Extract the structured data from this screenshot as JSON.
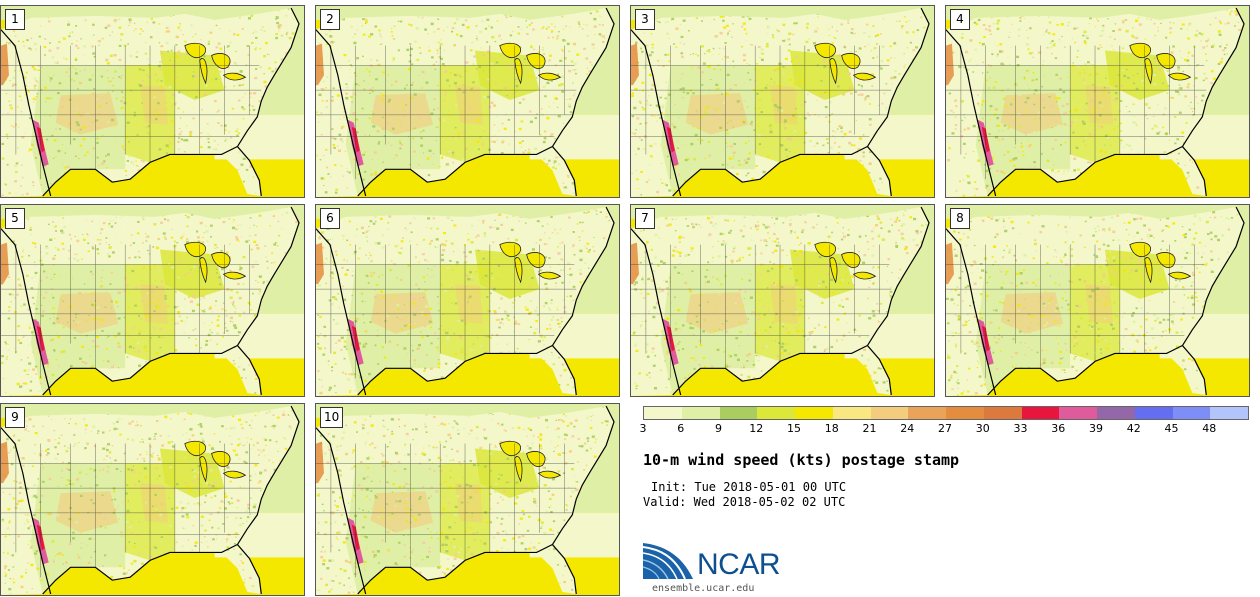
{
  "product": {
    "title": "10-m wind speed (kts) postage stamp",
    "init_label": "Init:",
    "init_value": "Tue 2018-05-01 00 UTC",
    "valid_label": "Valid:",
    "valid_value": "Wed 2018-05-02 02 UTC"
  },
  "logo": {
    "name": "NCAR",
    "website": "ensemble.ucar.edu"
  },
  "members": [
    {
      "label": "1"
    },
    {
      "label": "2"
    },
    {
      "label": "3"
    },
    {
      "label": "4"
    },
    {
      "label": "5"
    },
    {
      "label": "6"
    },
    {
      "label": "7"
    },
    {
      "label": "8"
    },
    {
      "label": "9"
    },
    {
      "label": "10"
    }
  ],
  "colorbar": {
    "unit": "kts",
    "ticks": [
      "3",
      "6",
      "9",
      "12",
      "15",
      "18",
      "21",
      "24",
      "27",
      "30",
      "33",
      "36",
      "39",
      "42",
      "45",
      "48"
    ],
    "colors": [
      "#f3f7c9",
      "#dff0a6",
      "#a9cd5f",
      "#dbe83a",
      "#f5e800",
      "#f9e882",
      "#f3cc7e",
      "#e9a45a",
      "#e58d3f",
      "#dc7a3e",
      "#e8163f",
      "#df5b9c",
      "#9367a8",
      "#636ff0",
      "#7d8ff6",
      "#b3c3fb"
    ]
  },
  "map_colors": {
    "light": "#f3f7c9",
    "pale": "#dff0a6",
    "green": "#a9cd5f",
    "yellow": "#f5e800",
    "lime": "#dbe83a",
    "tan": "#f3cc7e",
    "peach": "#f9c9a0",
    "red": "#e8163f",
    "pink": "#df5b9c"
  }
}
